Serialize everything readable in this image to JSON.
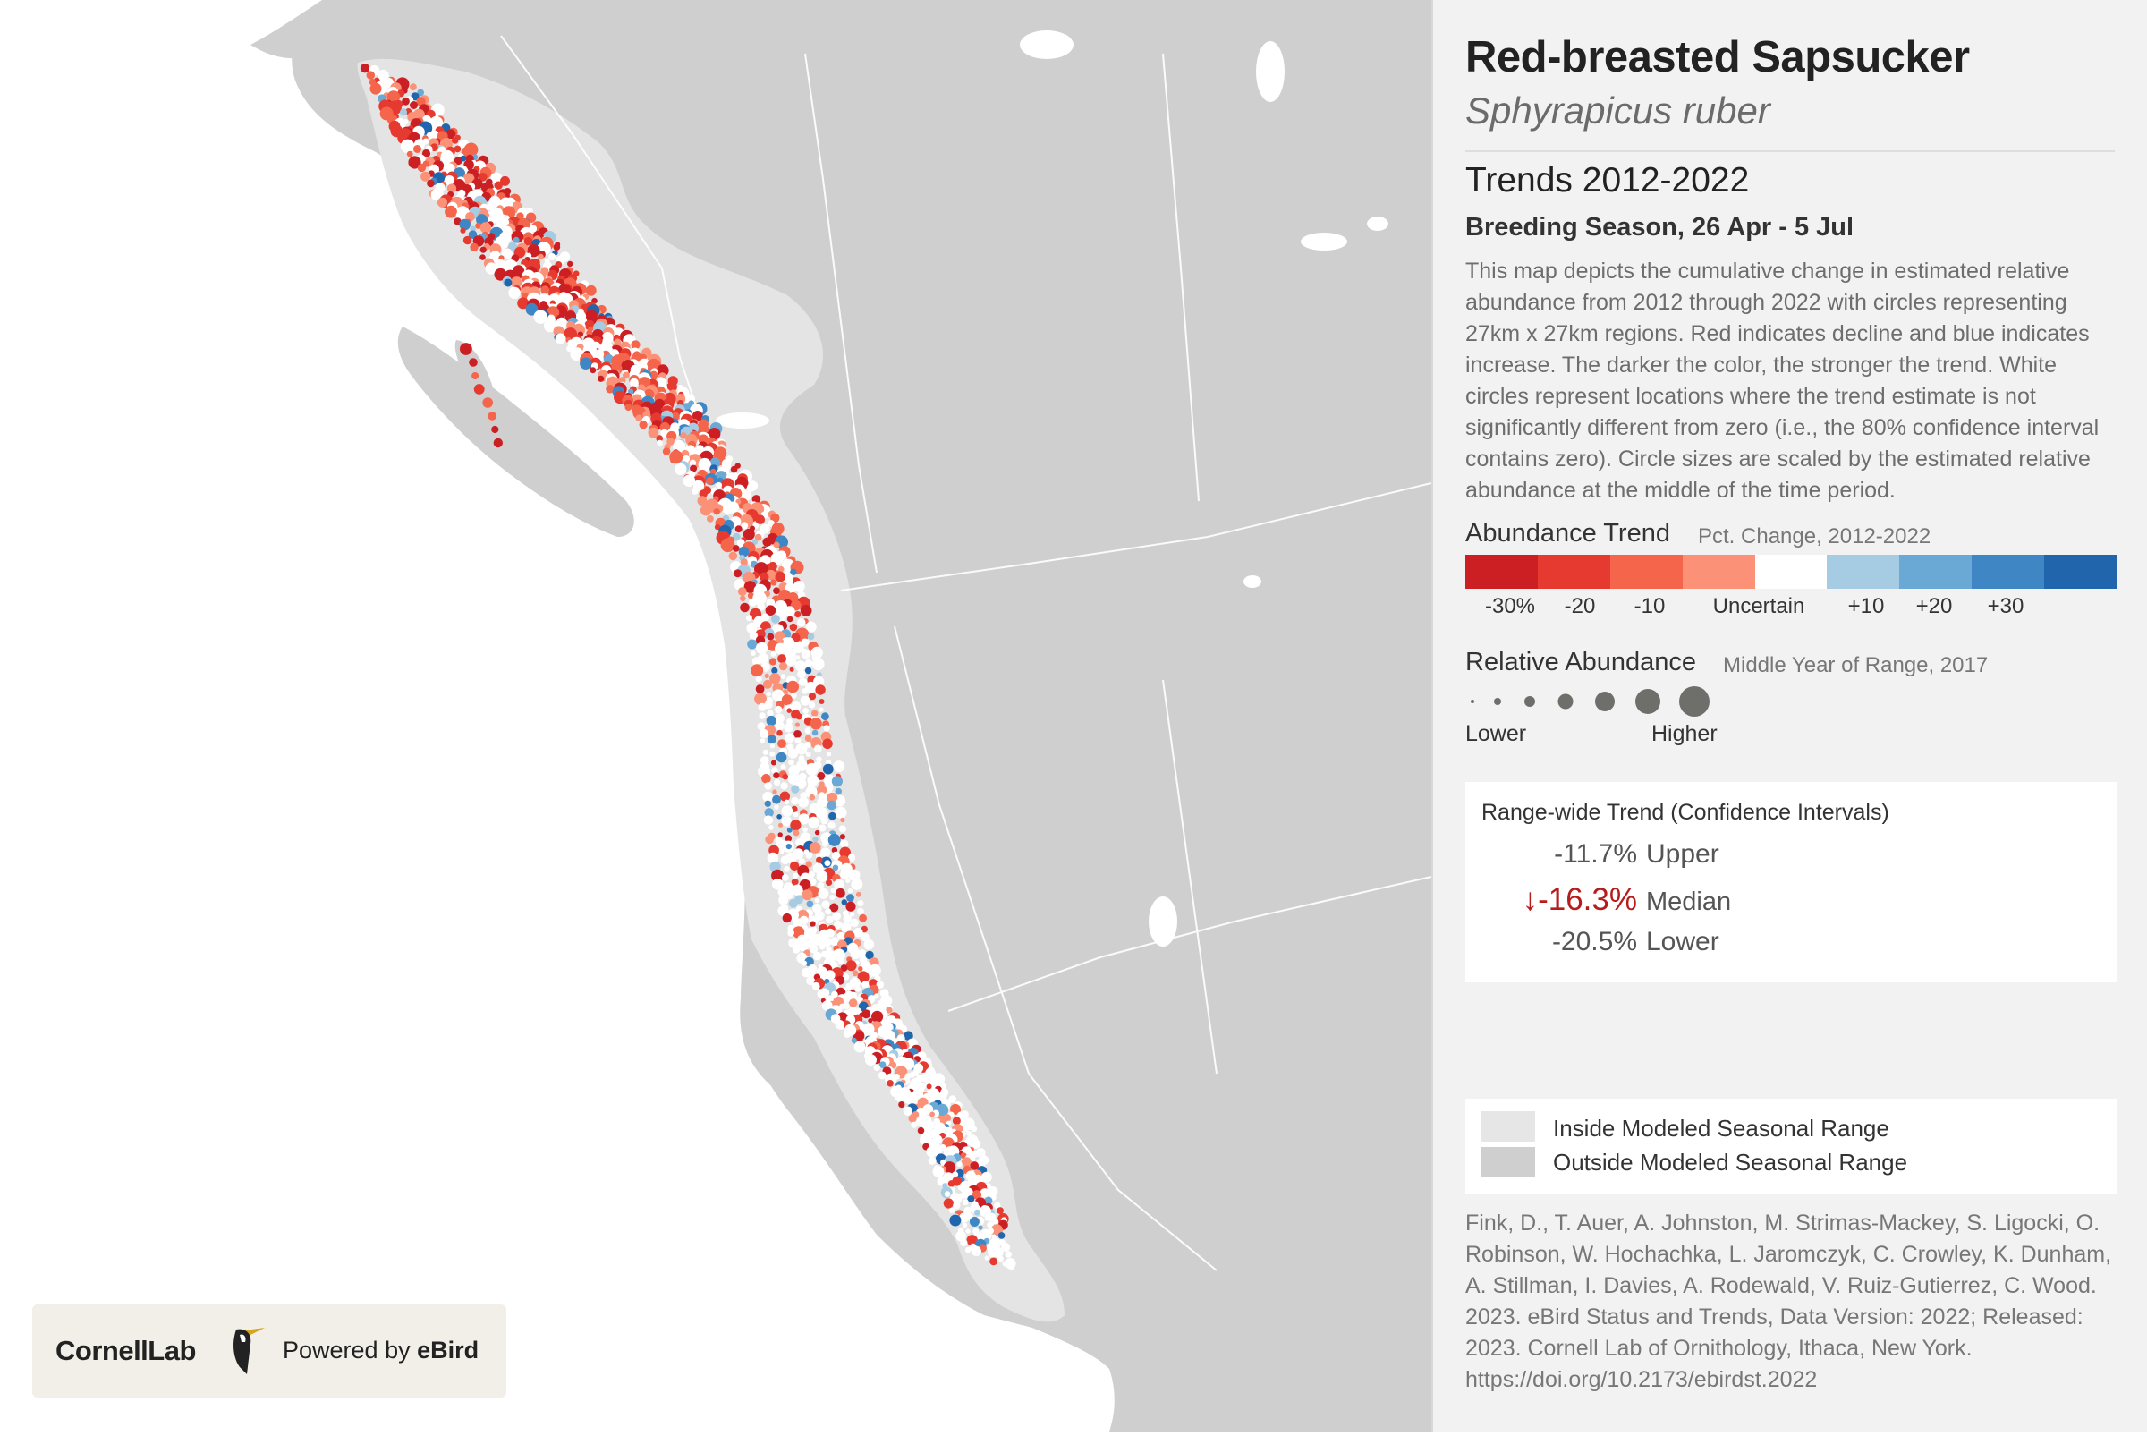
{
  "species": {
    "common_name": "Red-breasted Sapsucker",
    "scientific_name": "Sphyrapicus ruber"
  },
  "trends": {
    "title": "Trends 2012-2022",
    "season": "Breeding Season, 26 Apr - 5 Jul",
    "description": "This map depicts the cumulative change in estimated relative abundance from 2012 through 2022 with circles representing 27km x 27km regions. Red indicates decline and blue indicates increase. The darker the color, the stronger the trend. White circles represent locations where the trend estimate is not significantly different from zero (i.e., the 80% confidence interval contains zero). Circle sizes are scaled by the estimated relative abundance at the middle of the time period."
  },
  "abundance_trend_legend": {
    "title": "Abundance Trend",
    "subtitle": "Pct. Change, 2012-2022",
    "colors": [
      "#cc1f24",
      "#e63a30",
      "#f4654b",
      "#fb9177",
      "#ffffff",
      "#a6cce4",
      "#6aa9d5",
      "#3e87c4",
      "#2166ac"
    ],
    "tick_labels": [
      "-30%",
      "-20",
      "-10",
      "Uncertain",
      "+10",
      "+20",
      "+30"
    ]
  },
  "relative_abundance_legend": {
    "title": "Relative Abundance",
    "subtitle": "Middle Year of Range, 2017",
    "low_label": "Lower",
    "high_label": "Higher",
    "dot_color": "#6e6e6a"
  },
  "range_wide_trend": {
    "title": "Range-wide Trend (Confidence Intervals)",
    "upper_value": "-11.7%",
    "upper_label": "Upper",
    "median_arrow": "↓",
    "median_value": "-16.3%",
    "median_label": "Median",
    "lower_value": "-20.5%",
    "lower_label": "Lower",
    "median_color": "#b71c1c"
  },
  "range_key": {
    "inside_label": "Inside Modeled Seasonal Range",
    "outside_label": "Outside Modeled Seasonal Range",
    "inside_color": "#e6e6e6",
    "outside_color": "#cfcfcf"
  },
  "citation": "Fink, D., T. Auer, A. Johnston, M. Strimas-Mackey, S. Ligocki, O. Robinson, W. Hochachka, L. Jaromczyk, C. Crowley, K. Dunham, A. Stillman, I. Davies, A. Rodewald, V. Ruiz-Gutierrez, C. Wood. 2023. eBird Status and Trends, Data Version: 2022; Released: 2023. Cornell Lab of Ornithology, Ithaca, New York. https://doi.org/10.2173/ebirdst.2022",
  "logo": {
    "cornell": "CornellLab",
    "powered_by": "Powered by",
    "ebird": "eBird"
  },
  "map": {
    "land_color": "#cfcfcf",
    "ocean_color": "#ffffff",
    "range_color": "#e4e4e4"
  }
}
